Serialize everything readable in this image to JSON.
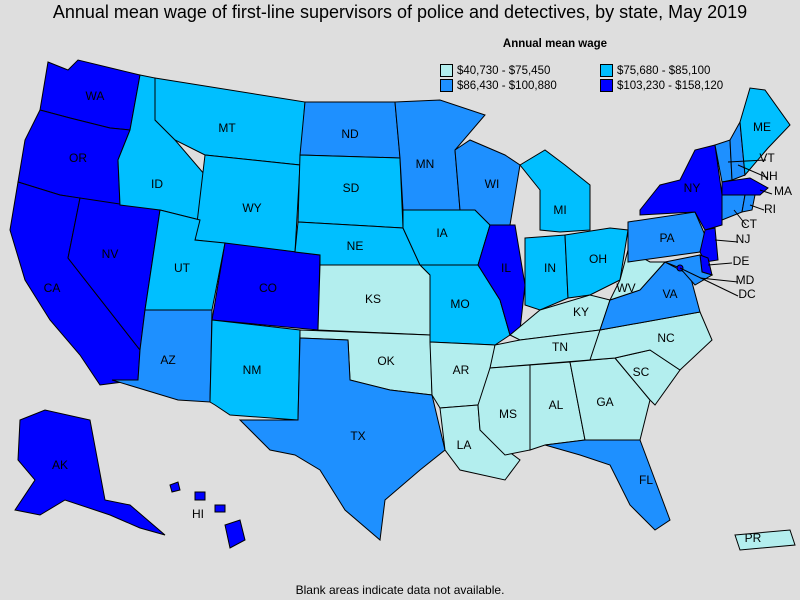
{
  "title": "Annual mean wage of first-line supervisors of police and detectives, by state, May 2019",
  "legend": {
    "title": "Annual mean wage",
    "items": [
      {
        "label": "$40,730 - $75,450",
        "color": "#b3eeee"
      },
      {
        "label": "$75,680 - $85,100",
        "color": "#00bfff"
      },
      {
        "label": "$86,430 - $100,880",
        "color": "#1e90ff"
      },
      {
        "label": "$103,230 - $158,120",
        "color": "#0000ff"
      }
    ]
  },
  "footnote": "Blank areas indicate data not available.",
  "colors": {
    "c1": "#b3eeee",
    "c2": "#00bfff",
    "c3": "#1e90ff",
    "c4": "#0000ff"
  },
  "states": {
    "WA": "c4",
    "OR": "c4",
    "CA": "c4",
    "NV": "c4",
    "ID": "c2",
    "MT": "c2",
    "WY": "c2",
    "UT": "c2",
    "AZ": "c3",
    "CO": "c4",
    "NM": "c2",
    "ND": "c3",
    "SD": "c2",
    "NE": "c2",
    "KS": "c1",
    "OK": "c1",
    "TX": "c3",
    "MN": "c3",
    "IA": "c2",
    "MO": "c2",
    "AR": "c1",
    "LA": "c1",
    "WI": "c3",
    "IL": "c4",
    "MI": "c2",
    "IN": "c2",
    "OH": "c2",
    "KY": "c1",
    "TN": "c1",
    "MS": "c1",
    "AL": "c1",
    "GA": "c1",
    "FL": "c3",
    "SC": "c1",
    "NC": "c1",
    "VA": "c3",
    "WV": "c1",
    "PA": "c3",
    "NY": "c4",
    "ME": "c2",
    "VT": "c3",
    "NH": "c3",
    "MA": "c4",
    "RI": "c3",
    "CT": "c3",
    "NJ": "c4",
    "DE": "c4",
    "MD": "c3",
    "DC": "c4",
    "AK": "c4",
    "HI": "c4",
    "PR": "c1"
  },
  "labels": [
    "WA",
    "OR",
    "CA",
    "NV",
    "ID",
    "MT",
    "WY",
    "UT",
    "AZ",
    "CO",
    "NM",
    "ND",
    "SD",
    "NE",
    "KS",
    "OK",
    "TX",
    "MN",
    "IA",
    "MO",
    "AR",
    "LA",
    "WI",
    "IL",
    "MI",
    "IN",
    "OH",
    "KY",
    "TN",
    "MS",
    "AL",
    "GA",
    "FL",
    "SC",
    "NC",
    "VA",
    "WV",
    "PA",
    "NY",
    "ME",
    "VT",
    "NH",
    "MA",
    "RI",
    "CT",
    "NJ",
    "DE",
    "MD",
    "DC",
    "AK",
    "HI",
    "PR"
  ]
}
